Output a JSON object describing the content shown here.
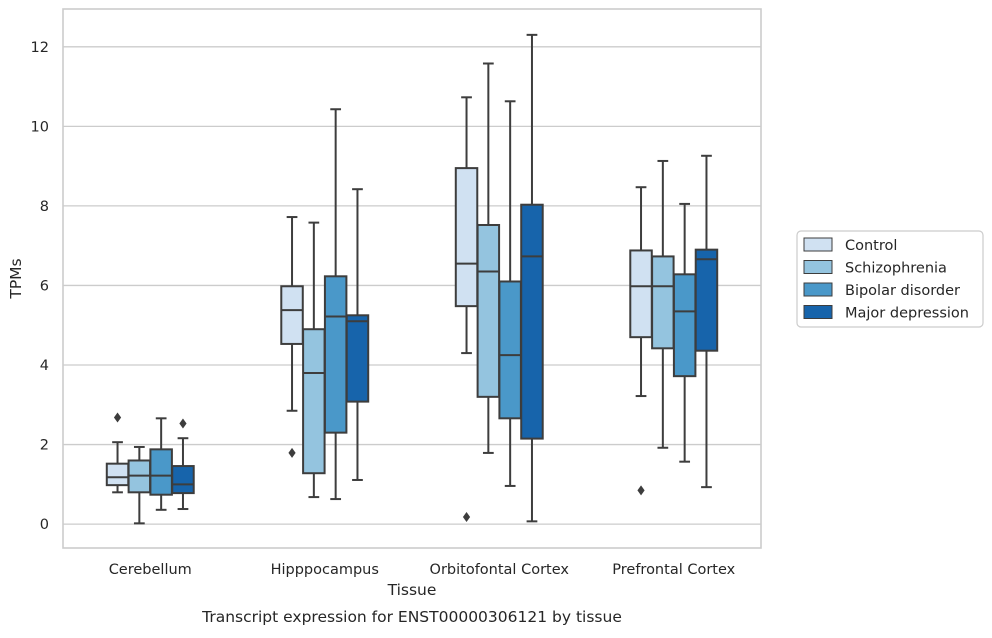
{
  "chart_data": {
    "type": "box",
    "title": "Transcript expression for ENST00000306121 by tissue",
    "xlabel": "Tissue",
    "ylabel": "TPMs",
    "ylim": [
      -0.6,
      12.95
    ],
    "yticks": [
      0,
      2,
      4,
      6,
      8,
      10,
      12
    ],
    "grid": "horizontal",
    "legend_position": "right",
    "categories": [
      "Cerebellum",
      "Hipppocampus",
      "Orbitofontal Cortex",
      "Prefrontal Cortex"
    ],
    "series": [
      {
        "name": "Control",
        "color": "#d0e1f2",
        "boxes": [
          {
            "whisker_low": 0.8,
            "q1": 0.98,
            "median": 1.18,
            "q3": 1.52,
            "whisker_high": 2.06,
            "outliers": [
              2.68
            ]
          },
          {
            "whisker_low": 2.85,
            "q1": 4.53,
            "median": 5.38,
            "q3": 5.98,
            "whisker_high": 7.72,
            "outliers": [
              1.79
            ]
          },
          {
            "whisker_low": 4.3,
            "q1": 5.48,
            "median": 6.55,
            "q3": 8.95,
            "whisker_high": 10.73,
            "outliers": [
              0.18
            ]
          },
          {
            "whisker_low": 3.22,
            "q1": 4.7,
            "median": 5.98,
            "q3": 6.88,
            "whisker_high": 8.47,
            "outliers": [
              0.85
            ]
          }
        ]
      },
      {
        "name": "Schizophrenia",
        "color": "#94c4df",
        "boxes": [
          {
            "whisker_low": 0.02,
            "q1": 0.8,
            "median": 1.22,
            "q3": 1.6,
            "whisker_high": 1.94,
            "outliers": []
          },
          {
            "whisker_low": 0.68,
            "q1": 1.28,
            "median": 3.8,
            "q3": 4.9,
            "whisker_high": 7.58,
            "outliers": []
          },
          {
            "whisker_low": 1.79,
            "q1": 3.2,
            "median": 6.35,
            "q3": 7.52,
            "whisker_high": 11.58,
            "outliers": []
          },
          {
            "whisker_low": 1.92,
            "q1": 4.42,
            "median": 5.98,
            "q3": 6.73,
            "whisker_high": 9.13,
            "outliers": []
          }
        ]
      },
      {
        "name": "Bipolar disorder",
        "color": "#4a98c9",
        "boxes": [
          {
            "whisker_low": 0.36,
            "q1": 0.74,
            "median": 1.22,
            "q3": 1.88,
            "whisker_high": 2.66,
            "outliers": []
          },
          {
            "whisker_low": 0.63,
            "q1": 2.3,
            "median": 5.22,
            "q3": 6.23,
            "whisker_high": 10.43,
            "outliers": []
          },
          {
            "whisker_low": 0.96,
            "q1": 2.66,
            "median": 4.25,
            "q3": 6.1,
            "whisker_high": 10.63,
            "outliers": []
          },
          {
            "whisker_low": 1.57,
            "q1": 3.72,
            "median": 5.35,
            "q3": 6.28,
            "whisker_high": 8.05,
            "outliers": []
          }
        ]
      },
      {
        "name": "Major depression",
        "color": "#1764ab",
        "boxes": [
          {
            "whisker_low": 0.38,
            "q1": 0.78,
            "median": 1.0,
            "q3": 1.46,
            "whisker_high": 2.16,
            "outliers": [
              2.53
            ]
          },
          {
            "whisker_low": 1.11,
            "q1": 3.08,
            "median": 5.1,
            "q3": 5.25,
            "whisker_high": 8.42,
            "outliers": []
          },
          {
            "whisker_low": 0.07,
            "q1": 2.15,
            "median": 6.73,
            "q3": 8.03,
            "whisker_high": 12.3,
            "outliers": []
          },
          {
            "whisker_low": 0.93,
            "q1": 4.36,
            "median": 6.66,
            "q3": 6.9,
            "whisker_high": 9.26,
            "outliers": []
          }
        ]
      }
    ]
  }
}
